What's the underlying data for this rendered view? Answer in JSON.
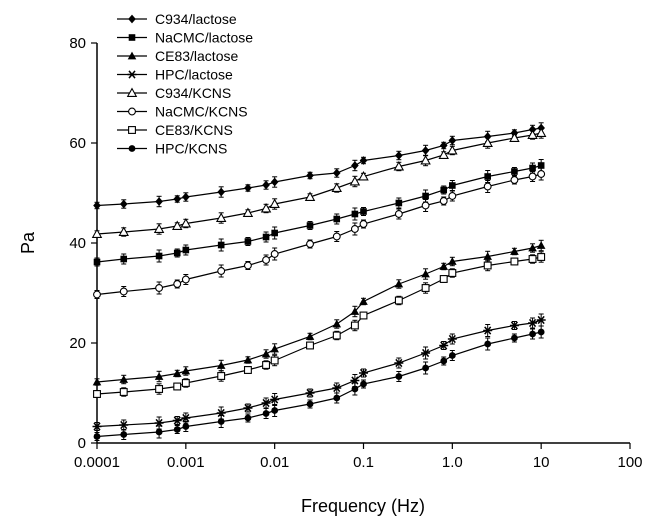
{
  "chart_data": {
    "type": "line",
    "title": "",
    "xlabel": "Frequency (Hz)",
    "ylabel": "Pa",
    "x_scale": "log",
    "xlim": [
      0.0001,
      100
    ],
    "ylim": [
      0,
      80
    ],
    "x_ticks": [
      {
        "value": 0.0001,
        "label": "0.0001"
      },
      {
        "value": 0.001,
        "label": "0.001"
      },
      {
        "value": 0.01,
        "label": "0.01"
      },
      {
        "value": 0.1,
        "label": "0.1"
      },
      {
        "value": 1,
        "label": "1.0"
      },
      {
        "value": 10,
        "label": "10"
      },
      {
        "value": 100,
        "label": "100"
      }
    ],
    "y_ticks": [
      {
        "value": 0,
        "label": "0"
      },
      {
        "value": 20,
        "label": "20"
      },
      {
        "value": 40,
        "label": "40"
      },
      {
        "value": 60,
        "label": "60"
      },
      {
        "value": 80,
        "label": "80"
      }
    ],
    "grid": false,
    "legend_position": "top-left",
    "x": [
      0.0001,
      0.0002,
      0.0005,
      0.0008,
      0.001,
      0.0025,
      0.005,
      0.008,
      0.01,
      0.025,
      0.05,
      0.08,
      0.1,
      0.25,
      0.5,
      0.8,
      1.0,
      2.5,
      5,
      8,
      10
    ],
    "series": [
      {
        "name": "C934/lactose",
        "marker": "diamond-filled",
        "values": [
          47.5,
          47.8,
          48.3,
          48.8,
          49.2,
          50.2,
          51.0,
          51.6,
          52.2,
          53.5,
          54.0,
          55.5,
          56.5,
          57.5,
          58.5,
          59.5,
          60.5,
          61.3,
          62.0,
          62.7,
          63.0
        ]
      },
      {
        "name": "NaCMC/lactose",
        "marker": "square-filled",
        "values": [
          36.2,
          36.8,
          37.4,
          38.0,
          38.6,
          39.6,
          40.3,
          41.2,
          42.0,
          43.5,
          44.8,
          45.8,
          46.3,
          48.0,
          49.4,
          50.6,
          51.5,
          53.3,
          54.3,
          55.0,
          55.5
        ]
      },
      {
        "name": "CE83/lactose",
        "marker": "triangle-filled",
        "values": [
          12.2,
          12.7,
          13.3,
          13.9,
          14.4,
          15.5,
          16.6,
          17.8,
          18.8,
          21.3,
          23.8,
          26.3,
          28.3,
          31.8,
          33.8,
          35.3,
          36.3,
          37.3,
          38.3,
          39.0,
          39.5
        ]
      },
      {
        "name": "HPC/lactose",
        "marker": "asterisk",
        "values": [
          3.3,
          3.6,
          4.0,
          4.5,
          5.0,
          6.0,
          7.0,
          8.0,
          8.7,
          10.0,
          11.0,
          12.5,
          14.0,
          16.0,
          18.0,
          19.5,
          20.8,
          22.5,
          23.5,
          24.0,
          24.6
        ]
      },
      {
        "name": "C934/KCNS",
        "marker": "triangle-open",
        "values": [
          41.8,
          42.2,
          42.8,
          43.4,
          43.9,
          45.0,
          46.0,
          46.9,
          47.8,
          49.2,
          51.0,
          52.3,
          53.3,
          55.3,
          56.5,
          57.6,
          58.5,
          60.0,
          61.0,
          61.6,
          62.0
        ]
      },
      {
        "name": "NaCMC/KCNS",
        "marker": "circle-open",
        "values": [
          29.7,
          30.3,
          31.0,
          31.8,
          32.7,
          34.4,
          35.5,
          36.6,
          37.8,
          39.8,
          41.3,
          42.8,
          43.8,
          45.8,
          47.5,
          48.4,
          49.4,
          51.3,
          52.6,
          53.3,
          53.8
        ]
      },
      {
        "name": "CE83/KCNS",
        "marker": "square-open",
        "values": [
          9.8,
          10.2,
          10.8,
          11.3,
          12.0,
          13.4,
          14.6,
          15.6,
          16.5,
          19.5,
          21.5,
          23.5,
          25.5,
          28.5,
          31.0,
          32.8,
          34.0,
          35.5,
          36.3,
          36.8,
          37.2
        ]
      },
      {
        "name": "HPC/KCNS",
        "marker": "circle-filled",
        "values": [
          1.3,
          1.7,
          2.2,
          2.7,
          3.3,
          4.3,
          5.0,
          5.9,
          6.5,
          7.8,
          9.0,
          10.8,
          11.8,
          13.3,
          15.0,
          16.4,
          17.5,
          19.8,
          21.0,
          21.8,
          22.2
        ]
      }
    ]
  }
}
